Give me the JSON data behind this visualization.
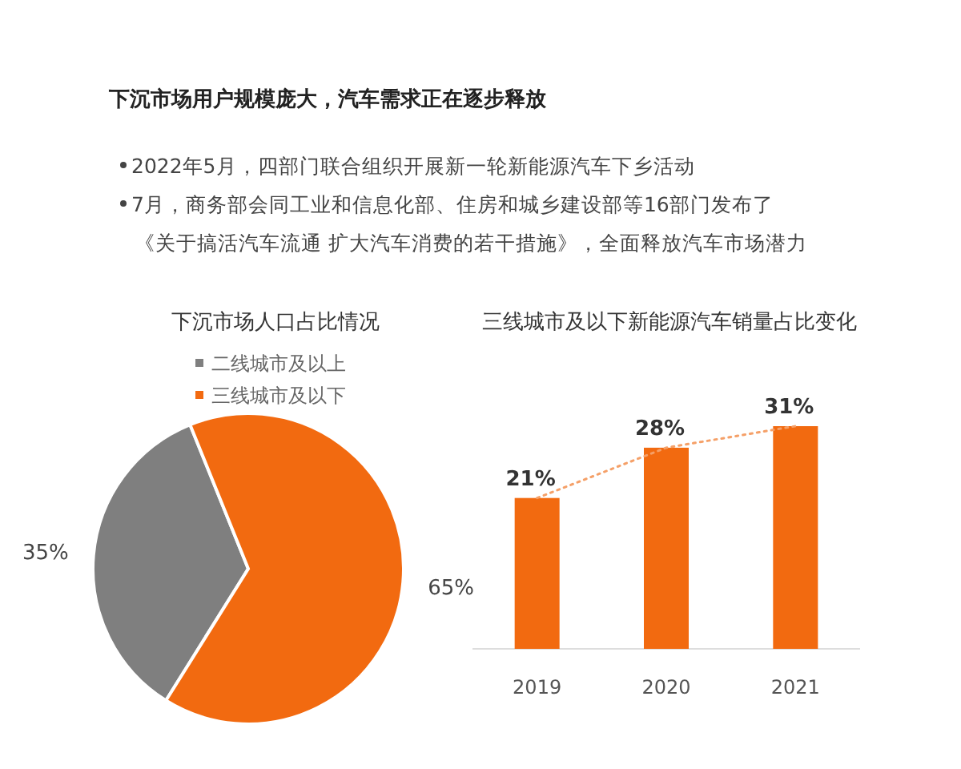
{
  "chart_data": [
    {
      "type": "other",
      "title": "下沉市场用户规模庞大，汽车需求正在逐步释放",
      "annotations": [
        "2022年5月，四部门联合组织开展新一轮新能源汽车下乡活动",
        "7月，商务部会同工业和信息化部、住房和城乡建设部等16部门发布了《关于搞活汽车流通 扩大汽车消费的若干措施》，全面释放汽车市场潜力"
      ]
    },
    {
      "type": "pie",
      "title": "下沉市场人口占比情况",
      "categories": [
        "二线城市及以上",
        "三线城市及以下"
      ],
      "values": [
        35,
        65
      ],
      "colors": [
        "#7f7f7f",
        "#f26a10"
      ],
      "value_labels": [
        "35%",
        "65%"
      ],
      "legend": "top"
    },
    {
      "type": "bar",
      "title": "三线城市及以下新能源汽车销量占比变化",
      "categories": [
        "2019",
        "2020",
        "2021"
      ],
      "series": [
        {
          "type": "bar",
          "color": "#f26a10",
          "values": [
            21,
            28,
            31
          ],
          "value_labels": [
            "21%",
            "28%",
            "31%"
          ]
        },
        {
          "type": "line",
          "color": "#f5a068",
          "values": [
            21,
            28,
            31
          ],
          "line_style": "dotted",
          "marker": "none"
        }
      ]
    }
  ]
}
